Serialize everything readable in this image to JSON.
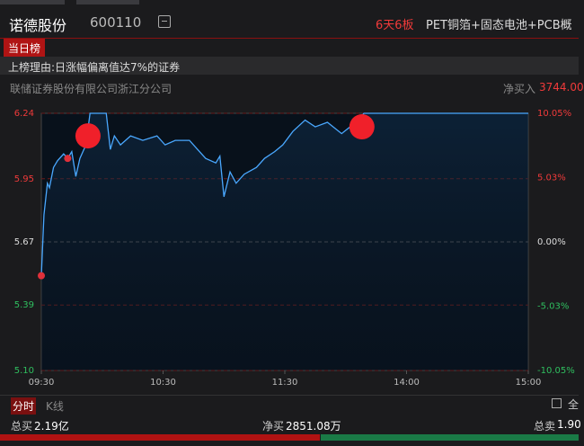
{
  "header": {
    "name": "诺德股份",
    "code": "600110",
    "streak": "6天6板",
    "concepts": "PET铜箔+固态电池+PCB概"
  },
  "tab": "当日榜",
  "reason": "上榜理由:日涨幅偏离值达7%的证券",
  "broker": {
    "name": "联储证券股份有限公司浙江分公司",
    "net_label": "净买入",
    "net_value": "3744.00"
  },
  "chart_data": {
    "type": "line",
    "x": [
      0,
      1.3,
      3,
      4,
      6,
      8,
      11,
      13,
      15,
      17,
      19,
      22,
      24,
      32,
      34,
      36,
      39,
      44,
      50,
      57,
      61,
      66,
      73,
      77,
      81,
      86,
      88,
      90,
      93,
      96,
      100,
      106,
      110,
      115,
      119,
      124,
      130,
      135,
      141,
      148,
      155,
      159,
      240
    ],
    "series": [
      {
        "color": "#4aa8ff",
        "values": [
          5.52,
          5.79,
          5.93,
          5.91,
          6.0,
          6.03,
          6.06,
          6.04,
          6.07,
          5.96,
          6.04,
          6.1,
          6.24,
          6.24,
          6.08,
          6.14,
          6.1,
          6.14,
          6.12,
          6.14,
          6.1,
          6.12,
          6.12,
          6.08,
          6.04,
          6.02,
          6.05,
          5.87,
          5.98,
          5.93,
          5.97,
          6.0,
          6.04,
          6.07,
          6.1,
          6.16,
          6.21,
          6.18,
          6.2,
          6.15,
          6.2,
          6.24,
          6.24
        ]
      }
    ],
    "markers": {
      "color": "#f0202a",
      "x": [
        23,
        158
      ],
      "values": [
        6.14,
        6.18
      ]
    },
    "dots": {
      "color": "#e0303a",
      "x": [
        0,
        13
      ],
      "values": [
        5.52,
        6.04
      ]
    },
    "xlim": [
      0,
      240
    ],
    "xticks": [
      {
        "value": 0,
        "label": "09:30"
      },
      {
        "value": 60,
        "label": "10:30"
      },
      {
        "value": 120,
        "label": "11:30"
      },
      {
        "value": 180,
        "label": "14:00"
      },
      {
        "value": 240,
        "label": "15:00"
      }
    ],
    "ylim": [
      5.1,
      6.24
    ],
    "yticks": [
      {
        "value": 6.24,
        "label": "6.24"
      },
      {
        "value": 5.95,
        "label": "5.95"
      },
      {
        "value": 5.67,
        "label": "5.67"
      },
      {
        "value": 5.39,
        "label": "5.39"
      },
      {
        "value": 5.1,
        "label": "5.10"
      }
    ],
    "y2lim": [
      -10.05,
      10.05
    ],
    "y2ticks": [
      {
        "value": 10.05,
        "label": "10.05%"
      },
      {
        "value": 5.03,
        "label": "5.03%"
      },
      {
        "value": 0,
        "label": "0.00%"
      },
      {
        "value": -5.03,
        "label": "-5.03%"
      },
      {
        "value": -10.05,
        "label": "-10.05%"
      }
    ]
  },
  "view_tabs": [
    "分时",
    "K线"
  ],
  "fullscreen": "全",
  "footer": {
    "total_buy_label": "总买",
    "total_buy": "2.19亿",
    "net_buy_label": "净买",
    "net_buy": "2851.08万",
    "total_sell_label": "总卖",
    "total_sell": "1.90"
  }
}
